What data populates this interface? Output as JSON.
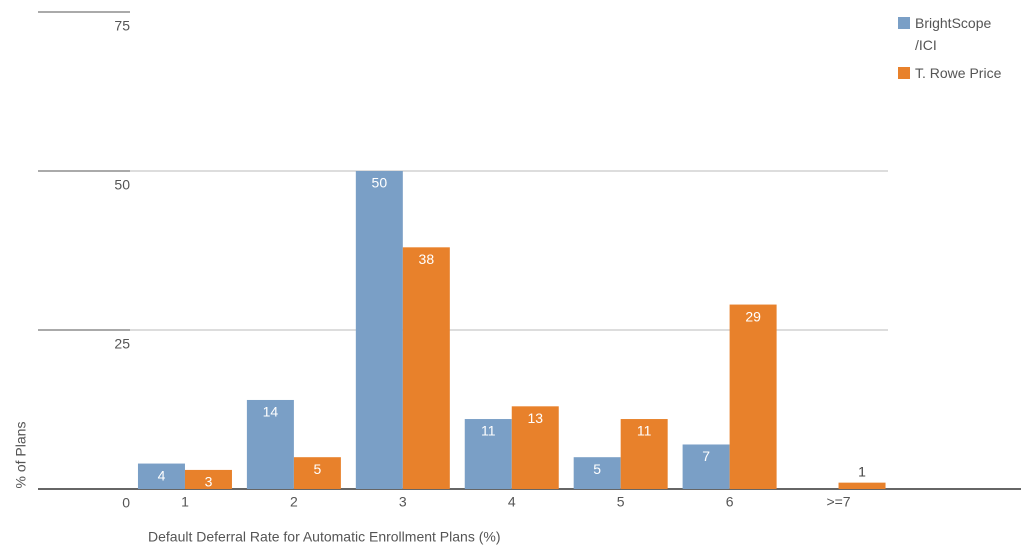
{
  "chart_data": {
    "type": "bar",
    "categories": [
      "1",
      "2",
      "3",
      "4",
      "5",
      "6",
      ">=7"
    ],
    "series": [
      {
        "name": "BrightScope /ICI",
        "color": "#7a9fc6",
        "values": [
          4,
          14,
          50,
          11,
          5,
          7,
          null
        ]
      },
      {
        "name": "T. Rowe Price",
        "color": "#e8812b",
        "values": [
          3,
          5,
          38,
          13,
          11,
          29,
          1
        ]
      }
    ],
    "y_label": "% of Plans",
    "x_label": "Default Deferral Rate for Automatic Enrollment Plans (%)",
    "ylim": [
      0,
      75
    ],
    "yticks": [
      0,
      25,
      50,
      75
    ],
    "grid": true,
    "legend": "top-right"
  }
}
